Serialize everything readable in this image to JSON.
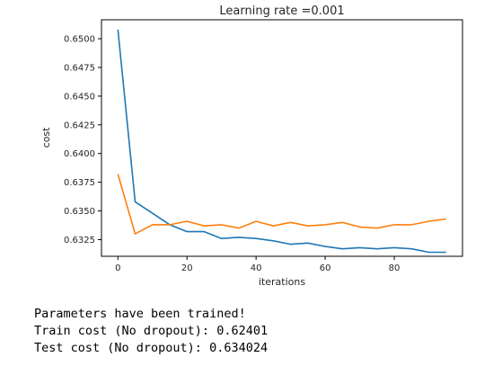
{
  "chart_data": {
    "type": "line",
    "title": "Learning rate =0.001",
    "xlabel": "iterations",
    "ylabel": "cost",
    "xlim": [
      -4.75,
      99.75
    ],
    "ylim": [
      0.63105,
      0.65165
    ],
    "xticks": [
      0,
      20,
      40,
      60,
      80
    ],
    "yticks": [
      0.6325,
      0.635,
      0.6375,
      0.64,
      0.6425,
      0.645,
      0.6475,
      0.65
    ],
    "ytick_labels": [
      "0.6325",
      "0.6350",
      "0.6375",
      "0.6400",
      "0.6425",
      "0.6450",
      "0.6475",
      "0.6500"
    ],
    "grid": false,
    "x": [
      0,
      5,
      10,
      15,
      20,
      25,
      30,
      35,
      40,
      45,
      50,
      55,
      60,
      65,
      70,
      75,
      80,
      85,
      90,
      95
    ],
    "series": [
      {
        "color": "#1f77b4",
        "values": [
          0.6508,
          0.6358,
          0.6348,
          0.6338,
          0.6332,
          0.6332,
          0.6326,
          0.6327,
          0.6326,
          0.6324,
          0.6321,
          0.6322,
          0.6319,
          0.6317,
          0.6318,
          0.6317,
          0.6318,
          0.6317,
          0.6314,
          0.6314
        ]
      },
      {
        "color": "#ff7f0e",
        "values": [
          0.6382,
          0.633,
          0.6338,
          0.6338,
          0.6341,
          0.6337,
          0.6338,
          0.6335,
          0.6341,
          0.6337,
          0.634,
          0.6337,
          0.6338,
          0.634,
          0.6336,
          0.6335,
          0.6338,
          0.6338,
          0.6341,
          0.6343
        ]
      }
    ]
  },
  "output": {
    "lines": [
      "Parameters have been trained!",
      "Train cost (No dropout): 0.62401",
      "Test cost (No dropout): 0.634024"
    ]
  }
}
